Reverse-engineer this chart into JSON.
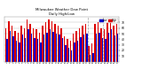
{
  "title": "Milwaukee Weather Dew Point",
  "subtitle": "Daily High/Low",
  "legend_high": "High",
  "legend_low": "Low",
  "color_high": "#dd0000",
  "color_low": "#0000cc",
  "background_color": "#ffffff",
  "plot_bg": "#ffffff",
  "grid_color": "#bbbbbb",
  "ylim": [
    0,
    80
  ],
  "yticks": [
    10,
    20,
    30,
    40,
    50,
    60,
    70
  ],
  "ytick_labels": [
    "10",
    "20",
    "30",
    "40",
    "50",
    "60",
    "70"
  ],
  "n_days": 37,
  "highs": [
    60,
    72,
    65,
    55,
    52,
    65,
    60,
    75,
    68,
    60,
    58,
    52,
    65,
    70,
    75,
    72,
    68,
    65,
    60,
    45,
    40,
    38,
    50,
    55,
    60,
    65,
    68,
    28,
    32,
    68,
    70,
    60,
    58,
    70,
    74,
    65,
    68
  ],
  "lows": [
    40,
    55,
    45,
    38,
    35,
    48,
    42,
    58,
    50,
    42,
    40,
    35,
    48,
    52,
    58,
    54,
    50,
    48,
    42,
    30,
    24,
    20,
    34,
    38,
    44,
    48,
    50,
    12,
    16,
    50,
    52,
    42,
    40,
    52,
    58,
    47,
    50
  ],
  "dashed_lines": [
    26.5,
    31.5
  ],
  "bar_width": 0.42
}
